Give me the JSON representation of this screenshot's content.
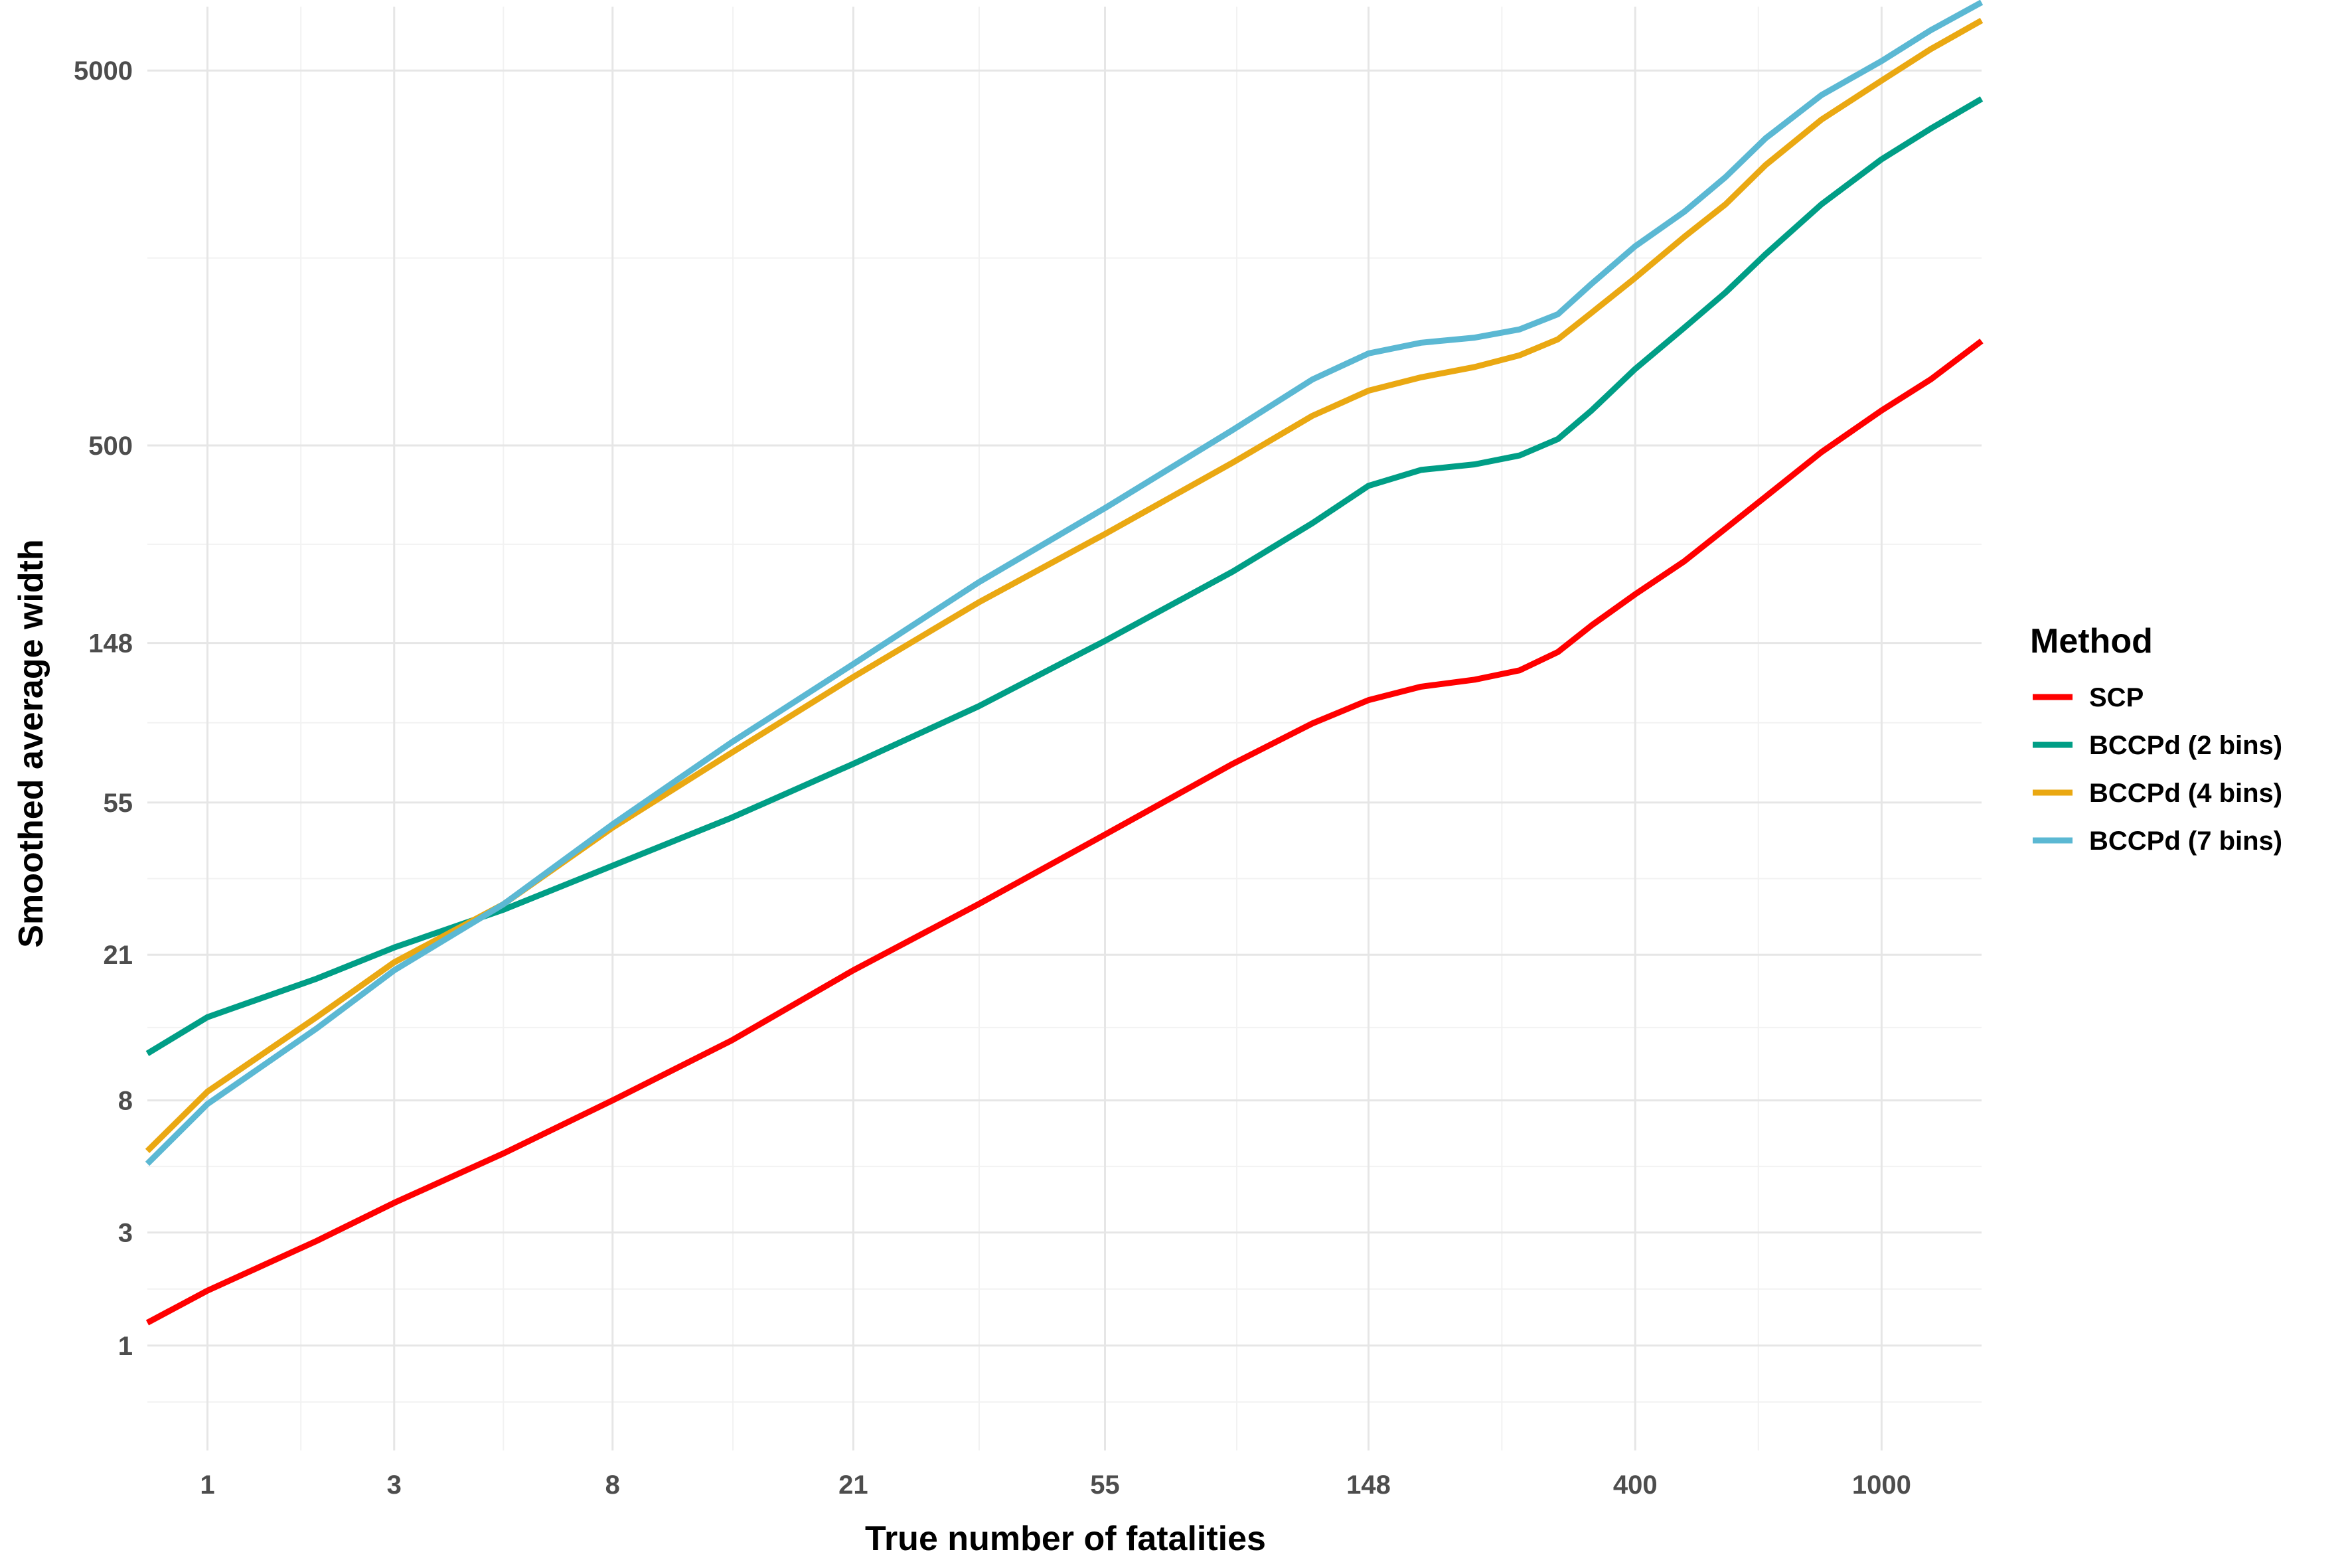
{
  "chart_data": {
    "type": "line",
    "xlabel": "True number of fatalities",
    "ylabel": "Smoothed average width",
    "x_scale": "log1p",
    "y_scale": "log1p",
    "xlim": [
      0.6,
      1450
    ],
    "ylim": [
      0.05,
      7400
    ],
    "x_ticks": [
      1,
      3,
      8,
      21,
      55,
      148,
      400,
      1000
    ],
    "x_tick_labels": [
      "1",
      "3",
      "8",
      "21",
      "55",
      "148",
      "400",
      "1000"
    ],
    "y_ticks": [
      1,
      3,
      8,
      21,
      55,
      148,
      500,
      5000
    ],
    "y_tick_labels": [
      "1",
      "3",
      "8",
      "21",
      "55",
      "148",
      "500",
      "5000"
    ],
    "grid": true,
    "legend": {
      "title": "Method",
      "position": "right"
    },
    "x": [
      0.6,
      1,
      2,
      3,
      5,
      8,
      13,
      21,
      34,
      55,
      89,
      120,
      148,
      180,
      220,
      260,
      300,
      340,
      400,
      480,
      560,
      650,
      800,
      1000,
      1200,
      1450
    ],
    "series": [
      {
        "name": "SCP",
        "color": "#ff0000",
        "values": [
          1.3,
          1.8,
          2.8,
          3.8,
          5.5,
          8.0,
          12,
          19,
          29,
          45,
          70,
          90,
          104,
          113,
          118,
          125,
          140,
          165,
          200,
          245,
          300,
          365,
          480,
          620,
          750,
          950
        ]
      },
      {
        "name": "BCCPd (2 bins)",
        "color": "#009e86",
        "values": [
          11,
          14,
          18,
          22,
          28,
          37,
          50,
          70,
          100,
          150,
          230,
          310,
          390,
          430,
          445,
          470,
          520,
          620,
          800,
          1030,
          1280,
          1620,
          2200,
          2900,
          3500,
          4200
        ]
      },
      {
        "name": "BCCPd (4 bins)",
        "color": "#eaa812",
        "values": [
          5.6,
          8.5,
          14,
          20,
          29,
          47,
          75,
          120,
          190,
          290,
          450,
          600,
          700,
          760,
          810,
          870,
          960,
          1130,
          1400,
          1800,
          2200,
          2800,
          3700,
          4700,
          5700,
          6800
        ]
      },
      {
        "name": "BCCPd (7 bins)",
        "color": "#5bb8d3",
        "values": [
          5.1,
          7.8,
          13,
          19,
          29,
          48,
          80,
          130,
          215,
          340,
          550,
          750,
          880,
          940,
          970,
          1020,
          1120,
          1350,
          1700,
          2100,
          2600,
          3300,
          4300,
          5300,
          6400,
          7600
        ]
      }
    ]
  }
}
